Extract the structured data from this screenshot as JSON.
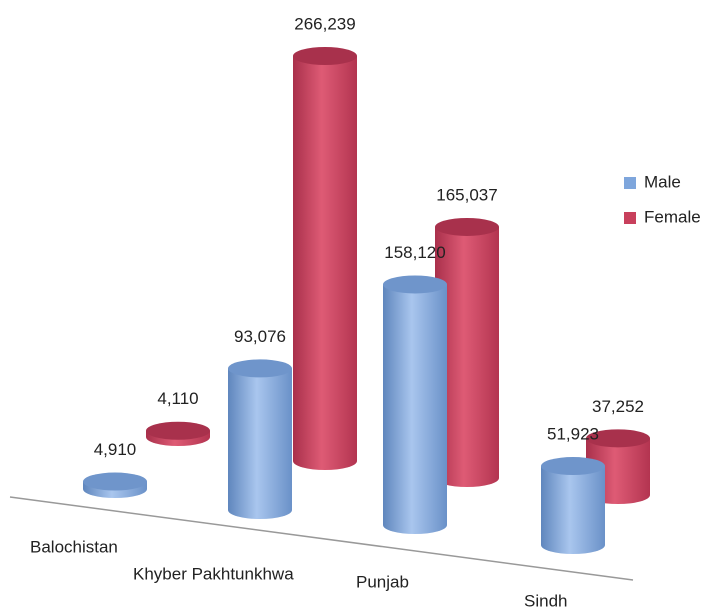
{
  "chart_data": {
    "type": "bar3d",
    "categories": [
      "Balochistan",
      "Khyber Pakhtunkhwa",
      "Punjab",
      "Sindh"
    ],
    "series": [
      {
        "name": "Male",
        "color": "#7ea6dc",
        "values": [
          4910,
          93076,
          158120,
          51923
        ],
        "value_labels": [
          "4,910",
          "93,076",
          "158,120",
          "51,923"
        ]
      },
      {
        "name": "Female",
        "color": "#c8405c",
        "values": [
          4110,
          266239,
          165037,
          37252
        ],
        "value_labels": [
          "4,110",
          "266,239",
          "165,037",
          "37,252"
        ]
      }
    ],
    "legend": "right"
  }
}
